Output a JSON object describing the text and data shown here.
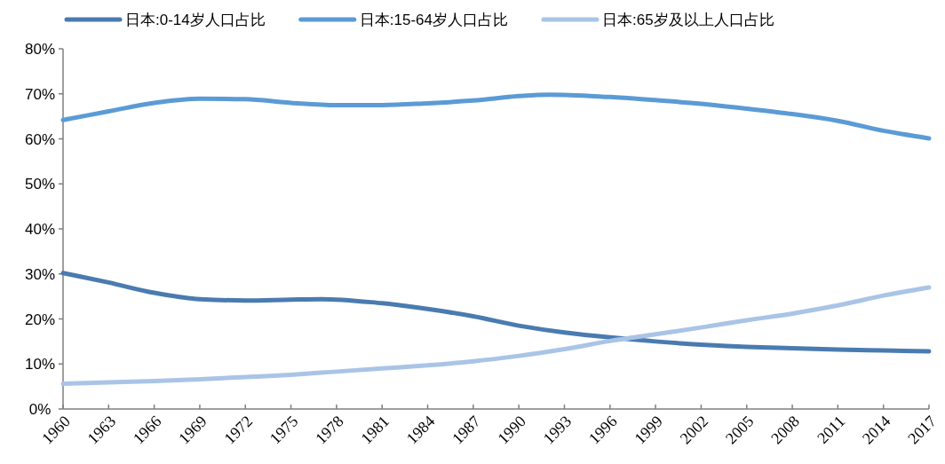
{
  "chart_data": {
    "type": "line",
    "legend": "top",
    "marker": "none",
    "line_style": "solid",
    "grid": false,
    "xlim": [
      1960,
      2017
    ],
    "xticks": [
      1960,
      1963,
      1966,
      1969,
      1972,
      1975,
      1978,
      1981,
      1984,
      1987,
      1990,
      1993,
      1996,
      1999,
      2002,
      2005,
      2008,
      2011,
      2014,
      2017
    ],
    "ylim": [
      0,
      80
    ],
    "yticks": [
      {
        "value": 0,
        "label": "0%"
      },
      {
        "value": 10,
        "label": "10%"
      },
      {
        "value": 20,
        "label": "20%"
      },
      {
        "value": 30,
        "label": "30%"
      },
      {
        "value": 40,
        "label": "40%"
      },
      {
        "value": 50,
        "label": "50%"
      },
      {
        "value": 60,
        "label": "60%"
      },
      {
        "value": 70,
        "label": "70%"
      },
      {
        "value": 80,
        "label": "80%"
      }
    ],
    "series": [
      {
        "name": "日本:0-14岁人口占比",
        "color": "#4a7bb0",
        "x": [
          1960,
          1963,
          1966,
          1969,
          1972,
          1975,
          1977,
          1981,
          1984,
          1987,
          1990,
          1993,
          1996,
          1999,
          2002,
          2005,
          2008,
          2011,
          2014,
          2017
        ],
        "values": [
          30.2,
          28.1,
          25.8,
          24.4,
          24.1,
          24.3,
          24.4,
          23.5,
          22.2,
          20.6,
          18.5,
          17.0,
          15.9,
          15.0,
          14.3,
          13.8,
          13.5,
          13.2,
          13.0,
          12.8
        ]
      },
      {
        "name": "日本:15-64岁人口占比",
        "color": "#5b9bd5",
        "x": [
          1960,
          1963,
          1966,
          1969,
          1972,
          1975,
          1978,
          1981,
          1984,
          1987,
          1990,
          1992,
          1996,
          1999,
          2002,
          2005,
          2008,
          2011,
          2014,
          2017
        ],
        "values": [
          64.2,
          66.1,
          68.0,
          68.9,
          68.8,
          68.0,
          67.5,
          67.5,
          67.9,
          68.5,
          69.5,
          69.8,
          69.3,
          68.6,
          67.8,
          66.7,
          65.5,
          64.0,
          61.8,
          60.1
        ]
      },
      {
        "name": "日本:65岁及以上人口占比",
        "color": "#a9c4e6",
        "x": [
          1960,
          1963,
          1966,
          1969,
          1972,
          1975,
          1978,
          1981,
          1984,
          1987,
          1990,
          1993,
          1996,
          1999,
          2002,
          2005,
          2008,
          2011,
          2014,
          2017
        ],
        "values": [
          5.6,
          5.9,
          6.2,
          6.6,
          7.1,
          7.6,
          8.3,
          9.0,
          9.7,
          10.6,
          11.8,
          13.3,
          15.1,
          16.6,
          18.1,
          19.7,
          21.2,
          23.0,
          25.2,
          27.0
        ]
      }
    ]
  }
}
